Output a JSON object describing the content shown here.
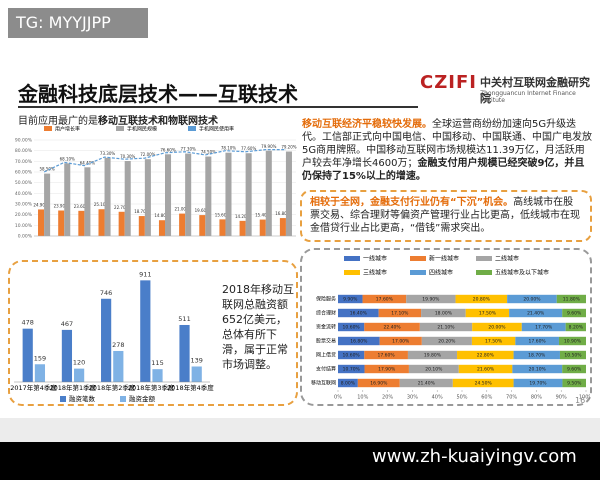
{
  "badge": "TG: MYYJJPP",
  "header": {
    "title": "金融科技底层技术——互联技术",
    "logo_mark": "CZIFI",
    "logo_name": "中关村互联网金融研究院",
    "logo_en": "Zhongguancun Internet Finance Institute"
  },
  "subtitle": [
    "目前应用最广的是",
    "移动互联技术和物联网技术"
  ],
  "paragraph1": [
    "移动互联经济平稳较快发展。",
    "全球运营商纷纷加速向5G升级迭代。工信部正式向中国电信、中国移动、中国联通、中国广电发放5G商用牌照。中国移动互联网市场规模达11.39万亿，月活跃用户较去年净增长4600万；",
    "金融支付用户规模已经突破9亿，并且仍保持了15%以上的增速。"
  ],
  "paragraph2": [
    "相较于全网，金融支付行业仍有“下沉”机会。",
    "高线城市在股票交易、综合理财等偏资产管理行业占比更高，低线城市在现金借贷行业占比更高，“借钱”需求突出。"
  ],
  "side_note": "2018年移动互联网总融资额652亿美元，总体有所下滑，属于正常市场调整。",
  "page_number": "16",
  "watermark": "www.zh-kuaiyingv.com",
  "chart_data": [
    {
      "type": "combo",
      "categories": [
        null,
        null,
        null,
        null,
        null,
        null,
        null,
        null,
        null,
        null,
        null,
        null,
        null
      ],
      "ylim": [
        0,
        90
      ],
      "yticks": [
        {
          "value": 0,
          "label": "0.00%"
        },
        {
          "value": 10,
          "label": "10.00%"
        },
        {
          "value": 20,
          "label": "20.00%"
        },
        {
          "value": 30,
          "label": "30.00%"
        },
        {
          "value": 40,
          "label": "40.00%"
        },
        {
          "value": 50,
          "label": "50.00%"
        },
        {
          "value": 60,
          "label": "60.00%"
        },
        {
          "value": 70,
          "label": "70.00%"
        },
        {
          "value": 80,
          "label": "80.00%"
        },
        {
          "value": 90,
          "label": "90.00%"
        }
      ],
      "grid": true,
      "series": [
        {
          "name": "用户增长率",
          "color": "#ed7d31",
          "kind": "bar",
          "values": [
            24.9,
            23.9,
            23.6,
            25.1,
            22.7,
            18.7,
            14.8,
            21.0,
            19.6,
            15.6,
            14.2,
            15.4,
            16.8
          ],
          "value_labels": [
            "24.90%",
            "23.90%",
            "23.60%",
            "25.10%",
            "22.70%",
            "18.70%",
            "14.80%",
            "21.00%",
            "19.60%",
            "15.60%",
            "14.20%",
            "15.40%",
            "16.80%"
          ]
        },
        {
          "name": "手机网民规模",
          "color": "#a5a5a5",
          "kind": "bar",
          "values": [
            58.5,
            68.1,
            64.4,
            73.3,
            70.3,
            72.0,
            76.6,
            77.3,
            74.5,
            78.1,
            77.6,
            79.9,
            79.2
          ],
          "value_labels": [
            "58.50%",
            "68.10%",
            "64.40%",
            "73.30%",
            "70.30%",
            "72.00%",
            "76.60%",
            "77.30%",
            "74.50%",
            "78.10%",
            "77.60%",
            "79.90%",
            "79.20%"
          ]
        },
        {
          "name": "手机网民使用率",
          "color": "#5b9bd5",
          "kind": "line",
          "values": [
            60,
            69,
            66,
            74,
            72,
            73,
            78,
            79,
            76,
            80,
            79,
            81,
            81
          ]
        }
      ]
    },
    {
      "type": "bar",
      "categories": [
        "2017年第4季度",
        "2018年第1季度",
        "2018年第2季度",
        "2018年第3季度",
        "2018年第4季度"
      ],
      "ylim": [
        0,
        950
      ],
      "series": [
        {
          "name": "融资笔数",
          "color": "#4a7ec9",
          "values": [
            478,
            467,
            746,
            911,
            511
          ]
        },
        {
          "name": "融资金额",
          "color": "#7fb2e5",
          "values": [
            159,
            120,
            278,
            115,
            139
          ]
        }
      ]
    },
    {
      "type": "stacked_barh",
      "categories": [
        "保险服务",
        "综合理财",
        "资金流转",
        "股票交易",
        "网上借贷",
        "支付结算",
        "移动互联网"
      ],
      "xlim": [
        0,
        100
      ],
      "xticks": [
        {
          "value": 0,
          "label": "0%"
        },
        {
          "value": 10,
          "label": "10%"
        },
        {
          "value": 20,
          "label": "20%"
        },
        {
          "value": 30,
          "label": "30%"
        },
        {
          "value": 40,
          "label": "40%"
        },
        {
          "value": 50,
          "label": "50%"
        },
        {
          "value": 60,
          "label": "60%"
        },
        {
          "value": 70,
          "label": "70%"
        },
        {
          "value": 80,
          "label": "80%"
        },
        {
          "value": 90,
          "label": "90%"
        },
        {
          "value": 100,
          "label": "100%"
        }
      ],
      "series": [
        {
          "name": "一线城市",
          "color": "#4472c4",
          "values": [
            9.9,
            16.4,
            10.6,
            16.8,
            10.6,
            10.7,
            8.0
          ],
          "value_labels": [
            "9.90%",
            "16.40%",
            "10.60%",
            "16.80%",
            "10.60%",
            "10.70%",
            "8.00%"
          ]
        },
        {
          "name": "新一线城市",
          "color": "#ed7d31",
          "values": [
            17.6,
            17.1,
            22.4,
            17.0,
            17.6,
            17.9,
            16.9
          ],
          "value_labels": [
            "17.60%",
            "17.10%",
            "22.40%",
            "17.00%",
            "17.60%",
            "17.90%",
            "16.90%"
          ]
        },
        {
          "name": "二线城市",
          "color": "#a5a5a5",
          "values": [
            19.9,
            18.0,
            21.1,
            20.2,
            19.8,
            20.1,
            21.4
          ],
          "value_labels": [
            "19.90%",
            "18.00%",
            "21.10%",
            "20.20%",
            "19.80%",
            "20.10%",
            "21.40%"
          ]
        },
        {
          "name": "三线城市",
          "color": "#ffc000",
          "values": [
            20.8,
            17.5,
            20.0,
            17.5,
            22.8,
            21.6,
            24.5
          ],
          "value_labels": [
            "20.80%",
            "17.50%",
            "20.00%",
            "17.50%",
            "22.80%",
            "21.60%",
            "24.50%"
          ]
        },
        {
          "name": "四线城市",
          "color": "#5b9bd5",
          "values": [
            20.0,
            21.4,
            17.7,
            17.6,
            18.7,
            20.1,
            19.7
          ],
          "value_labels": [
            "20.00%",
            "21.40%",
            "17.70%",
            "17.60%",
            "18.70%",
            "20.10%",
            "19.70%"
          ]
        },
        {
          "name": "五线城市及以下城市",
          "color": "#70ad47",
          "values": [
            11.8,
            9.6,
            8.2,
            10.9,
            10.5,
            9.6,
            9.5
          ],
          "value_labels": [
            "11.80%",
            "9.60%",
            "8.20%",
            "10.90%",
            "10.50%",
            "9.60%",
            "9.50%"
          ]
        }
      ]
    }
  ]
}
